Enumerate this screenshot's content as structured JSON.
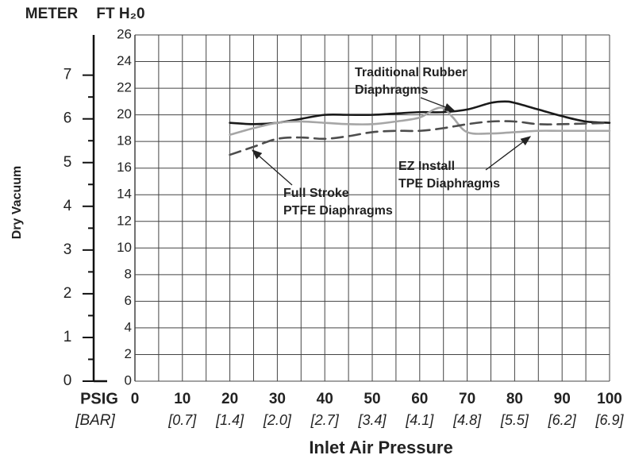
{
  "chart_data": {
    "type": "line",
    "y2_label": "METER",
    "y_label_top": "FT H₂0",
    "y_label": "Dry Vacuum",
    "x_label": "Inlet Air Pressure",
    "x_unit_label": "PSIG",
    "x_unit2_label": "[BAR]",
    "xlim": [
      0,
      100
    ],
    "xticks": [
      0,
      10,
      20,
      30,
      40,
      50,
      60,
      70,
      80,
      90,
      100
    ],
    "xticks2": [
      {
        "value": 10,
        "label": "[0.7]"
      },
      {
        "value": 20,
        "label": "[1.4]"
      },
      {
        "value": 30,
        "label": "[2.0]"
      },
      {
        "value": 40,
        "label": "[2.7]"
      },
      {
        "value": 50,
        "label": "[3.4]"
      },
      {
        "value": 60,
        "label": "[4.1]"
      },
      {
        "value": 70,
        "label": "[4.8]"
      },
      {
        "value": 80,
        "label": "[5.5]"
      },
      {
        "value": 90,
        "label": "[6.2]"
      },
      {
        "value": 100,
        "label": "[6.9]"
      }
    ],
    "ylim": [
      0,
      26
    ],
    "yticks": [
      0,
      2,
      4,
      6,
      8,
      10,
      12,
      14,
      16,
      18,
      20,
      22,
      24,
      26
    ],
    "y2lim": [
      0,
      7.92
    ],
    "y2ticks": [
      0,
      1,
      2,
      3,
      4,
      5,
      6,
      7
    ],
    "grid": true,
    "series": [
      {
        "name": "Traditional Rubber Diaphragms",
        "color": "#1a1a1a",
        "style": "solid",
        "x": [
          20,
          25,
          30,
          35,
          40,
          45,
          50,
          55,
          60,
          65,
          70,
          75,
          78,
          80,
          85,
          90,
          95,
          100
        ],
        "values": [
          19.4,
          19.3,
          19.4,
          19.7,
          20.0,
          20.0,
          20.0,
          20.1,
          20.2,
          20.2,
          20.4,
          20.9,
          21.0,
          20.9,
          20.4,
          19.9,
          19.5,
          19.4
        ]
      },
      {
        "name": "EZ Install TPE Diaphragms",
        "color": "#a6a6a6",
        "style": "solid",
        "x": [
          20,
          25,
          30,
          35,
          40,
          45,
          50,
          55,
          60,
          63,
          65,
          67,
          70,
          75,
          80,
          85,
          90,
          100
        ],
        "values": [
          18.5,
          19.0,
          19.4,
          19.5,
          19.4,
          19.3,
          19.3,
          19.5,
          19.8,
          20.4,
          20.5,
          19.8,
          18.7,
          18.6,
          18.7,
          18.8,
          18.8,
          18.8
        ]
      },
      {
        "name": "Full Stroke PTFE Diaphragms",
        "color": "#4d4d4d",
        "style": "dashed",
        "x": [
          20,
          25,
          30,
          35,
          40,
          45,
          50,
          55,
          60,
          65,
          70,
          75,
          80,
          85,
          90,
          100
        ],
        "values": [
          17.0,
          17.6,
          18.2,
          18.3,
          18.2,
          18.4,
          18.7,
          18.8,
          18.8,
          19.0,
          19.3,
          19.5,
          19.5,
          19.3,
          19.3,
          19.4
        ]
      }
    ],
    "annotations": [
      {
        "lines": [
          "Traditional Rubber",
          "Diaphragms"
        ]
      },
      {
        "lines": [
          "EZ Install",
          "TPE Diaphragms"
        ]
      },
      {
        "lines": [
          "Full Stroke",
          "PTFE Diaphragms"
        ]
      }
    ]
  }
}
